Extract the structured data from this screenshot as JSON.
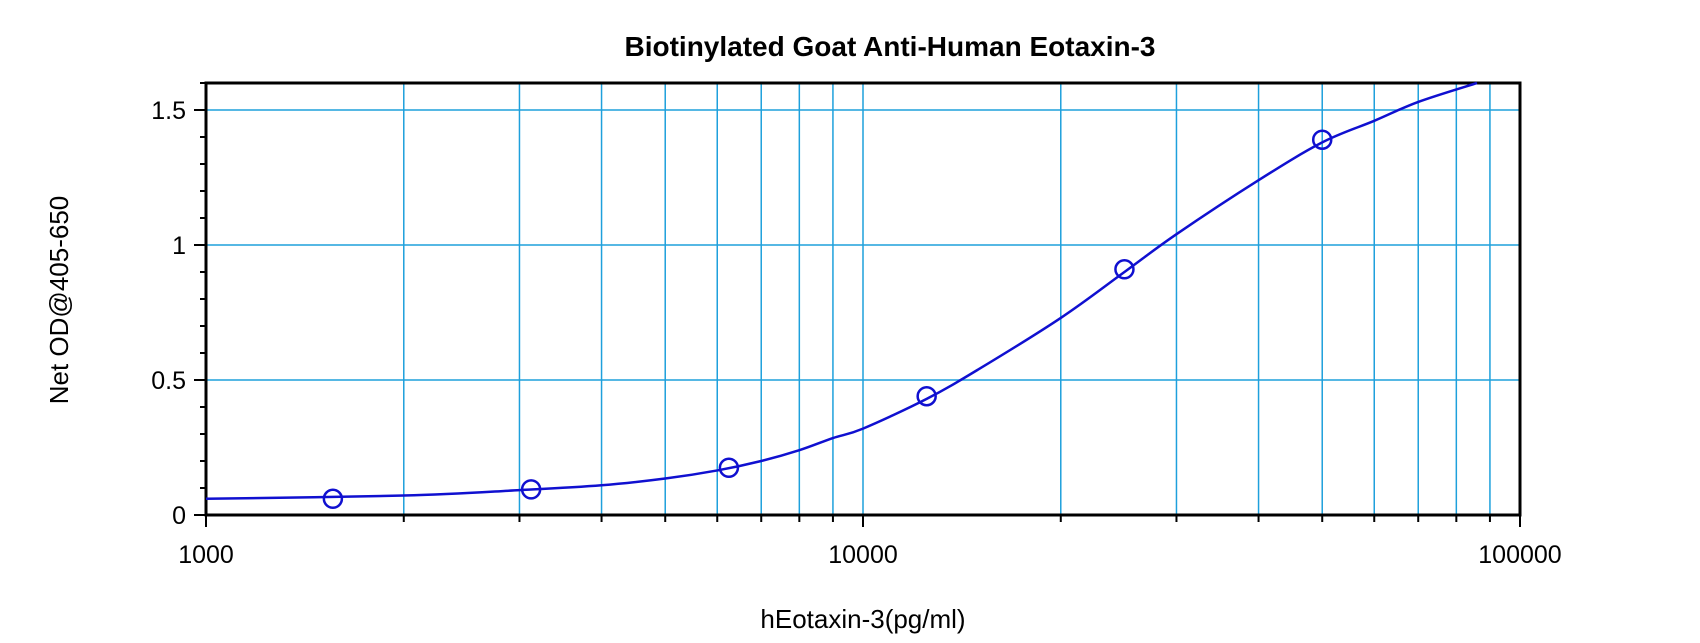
{
  "chart_data": {
    "type": "scatter",
    "title": "Biotinylated Goat Anti-Human Eotaxin-3",
    "xlabel": "hEotaxin-3(pg/ml)",
    "ylabel": "Net OD@405-650",
    "x_scale": "log",
    "xlim": [
      1000,
      100000
    ],
    "ylim": [
      0,
      1.6
    ],
    "x_ticks": [
      1000,
      10000,
      100000
    ],
    "x_tick_labels": [
      "1000",
      "10000",
      "100000"
    ],
    "y_ticks": [
      0,
      0.5,
      1,
      1.5
    ],
    "y_tick_labels": [
      "0",
      "0.5",
      "1",
      "1.5"
    ],
    "grid": true,
    "colors": {
      "grid": "#1ea0dc",
      "series": "#1010d0",
      "frame": "#000000"
    },
    "series": [
      {
        "points": [
          {
            "x": 1560,
            "y": 0.06
          },
          {
            "x": 3125,
            "y": 0.095
          },
          {
            "x": 6250,
            "y": 0.175
          },
          {
            "x": 12500,
            "y": 0.44
          },
          {
            "x": 25000,
            "y": 0.91
          },
          {
            "x": 50000,
            "y": 1.39
          }
        ],
        "fit_curve": [
          {
            "x": 1000,
            "y": 0.06
          },
          {
            "x": 2000,
            "y": 0.072
          },
          {
            "x": 3000,
            "y": 0.092
          },
          {
            "x": 4000,
            "y": 0.11
          },
          {
            "x": 5000,
            "y": 0.135
          },
          {
            "x": 6000,
            "y": 0.165
          },
          {
            "x": 7000,
            "y": 0.2
          },
          {
            "x": 8000,
            "y": 0.24
          },
          {
            "x": 9000,
            "y": 0.285
          },
          {
            "x": 10000,
            "y": 0.32
          },
          {
            "x": 12500,
            "y": 0.43
          },
          {
            "x": 15000,
            "y": 0.54
          },
          {
            "x": 20000,
            "y": 0.73
          },
          {
            "x": 25000,
            "y": 0.9
          },
          {
            "x": 30000,
            "y": 1.04
          },
          {
            "x": 40000,
            "y": 1.24
          },
          {
            "x": 50000,
            "y": 1.38
          },
          {
            "x": 60000,
            "y": 1.46
          },
          {
            "x": 70000,
            "y": 1.53
          },
          {
            "x": 86000,
            "y": 1.6
          }
        ]
      }
    ]
  }
}
